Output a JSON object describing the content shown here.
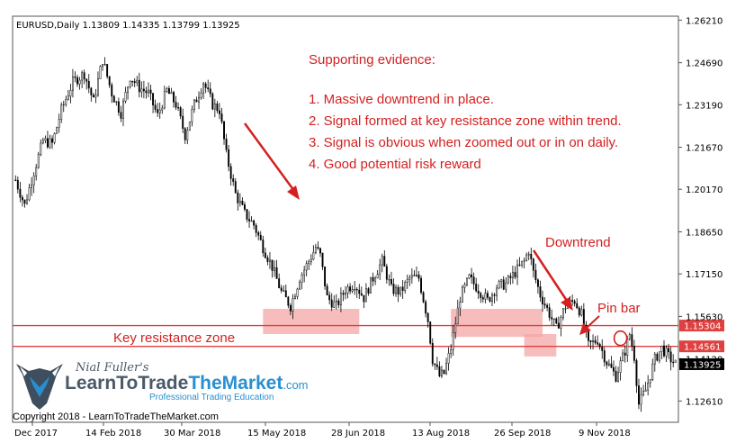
{
  "chart_data": {
    "type": "candlestick",
    "symbol_header": "EURUSD,Daily  1.13809 1.14335 1.13799 1.13925",
    "x_ticks": [
      "Dec 2017",
      "14 Feb 2018",
      "30 Mar 2018",
      "15 May 2018",
      "28 Jun 2018",
      "13 Aug 2018",
      "26 Sep 2018",
      "9 Nov 2018"
    ],
    "y_ticks": [
      1.2621,
      1.2469,
      1.2319,
      1.2167,
      1.2017,
      1.1865,
      1.1715,
      1.1563,
      1.1412,
      1.1261
    ],
    "y_tick_labels": [
      "1.26210",
      "1.24690",
      "1.23190",
      "1.21670",
      "1.20170",
      "1.18650",
      "1.17150",
      "1.15630",
      "1.14120",
      "1.12610"
    ],
    "ylim": [
      1.1185,
      1.2635
    ],
    "price_path": [
      [
        0,
        1.205
      ],
      [
        4,
        1.196
      ],
      [
        8,
        1.208
      ],
      [
        12,
        1.219
      ],
      [
        16,
        1.218
      ],
      [
        20,
        1.23
      ],
      [
        25,
        1.24
      ],
      [
        30,
        1.243
      ],
      [
        34,
        1.233
      ],
      [
        38,
        1.248
      ],
      [
        42,
        1.236
      ],
      [
        46,
        1.229
      ],
      [
        50,
        1.242
      ],
      [
        54,
        1.238
      ],
      [
        58,
        1.236
      ],
      [
        62,
        1.228
      ],
      [
        66,
        1.237
      ],
      [
        70,
        1.232
      ],
      [
        74,
        1.221
      ],
      [
        78,
        1.232
      ],
      [
        82,
        1.24
      ],
      [
        86,
        1.232
      ],
      [
        89,
        1.23
      ],
      [
        92,
        1.214
      ],
      [
        96,
        1.2
      ],
      [
        100,
        1.193
      ],
      [
        104,
        1.189
      ],
      [
        108,
        1.181
      ],
      [
        112,
        1.174
      ],
      [
        116,
        1.165
      ],
      [
        120,
        1.16
      ],
      [
        124,
        1.17
      ],
      [
        128,
        1.176
      ],
      [
        131,
        1.181
      ],
      [
        133,
        1.178
      ],
      [
        136,
        1.163
      ],
      [
        140,
        1.16
      ],
      [
        144,
        1.166
      ],
      [
        148,
        1.168
      ],
      [
        152,
        1.163
      ],
      [
        156,
        1.17
      ],
      [
        160,
        1.176
      ],
      [
        164,
        1.166
      ],
      [
        168,
        1.165
      ],
      [
        172,
        1.17
      ],
      [
        176,
        1.17
      ],
      [
        180,
        1.155
      ],
      [
        182,
        1.141
      ],
      [
        185,
        1.135
      ],
      [
        187,
        1.136
      ],
      [
        190,
        1.145
      ],
      [
        194,
        1.163
      ],
      [
        198,
        1.17
      ],
      [
        202,
        1.166
      ],
      [
        206,
        1.162
      ],
      [
        210,
        1.167
      ],
      [
        214,
        1.168
      ],
      [
        218,
        1.172
      ],
      [
        222,
        1.176
      ],
      [
        224,
        1.18
      ],
      [
        226,
        1.172
      ],
      [
        229,
        1.164
      ],
      [
        232,
        1.159
      ],
      [
        236,
        1.152
      ],
      [
        240,
        1.16
      ],
      [
        244,
        1.162
      ],
      [
        247,
        1.157
      ],
      [
        250,
        1.146
      ],
      [
        254,
        1.148
      ],
      [
        258,
        1.14
      ],
      [
        262,
        1.135
      ],
      [
        266,
        1.144
      ],
      [
        268,
        1.15
      ],
      [
        270,
        1.142
      ],
      [
        272,
        1.125
      ],
      [
        275,
        1.13
      ],
      [
        279,
        1.141
      ],
      [
        282,
        1.145
      ],
      [
        286,
        1.141
      ],
      [
        288,
        1.1393
      ]
    ],
    "bars_count": 289,
    "horizontal_lines": [
      {
        "price": 1.15304,
        "label": "1.15304"
      },
      {
        "price": 1.14561,
        "label": "1.14561"
      }
    ],
    "current_price": {
      "price": 1.13925,
      "label": "1.13925"
    },
    "zones": [
      {
        "from_bar": 108,
        "to_bar": 150,
        "price_low": 1.15,
        "price_high": 1.159
      },
      {
        "from_bar": 190,
        "to_bar": 230,
        "price_low": 1.149,
        "price_high": 1.159
      },
      {
        "from_bar": 222,
        "to_bar": 236,
        "price_low": 1.142,
        "price_high": 1.15
      }
    ],
    "pin_bar_marker": {
      "bar": 264,
      "price": 1.1485
    }
  },
  "annotations": {
    "evidence_title": "Supporting evidence:",
    "evidence_items": [
      "1. Massive downtrend in place.",
      "2. Signal formed at key resistance zone within trend.",
      "3. Signal is obvious when zoomed out or in on daily.",
      "4. Good potential risk reward"
    ],
    "downtrend_label": "Downtrend",
    "pin_bar_label": "Pin bar",
    "key_zone_label": "Key resistance zone"
  },
  "watermark": {
    "author": "Nial Fuller's",
    "brand_left": "LearnToTrade",
    "brand_right": "TheMarket",
    "brand_suffix": ".com",
    "tagline": "Professional Trading Education",
    "copyright": "Copyright 2018 - LearnToTradeTheMarket.com"
  },
  "colors": {
    "candles": "#000000",
    "lines": "#e04040",
    "zone_fill": "#f4a6a6",
    "annotation": "#d42020",
    "brand_dark": "#4a5a6a",
    "brand_blue": "#2a8fd0"
  }
}
